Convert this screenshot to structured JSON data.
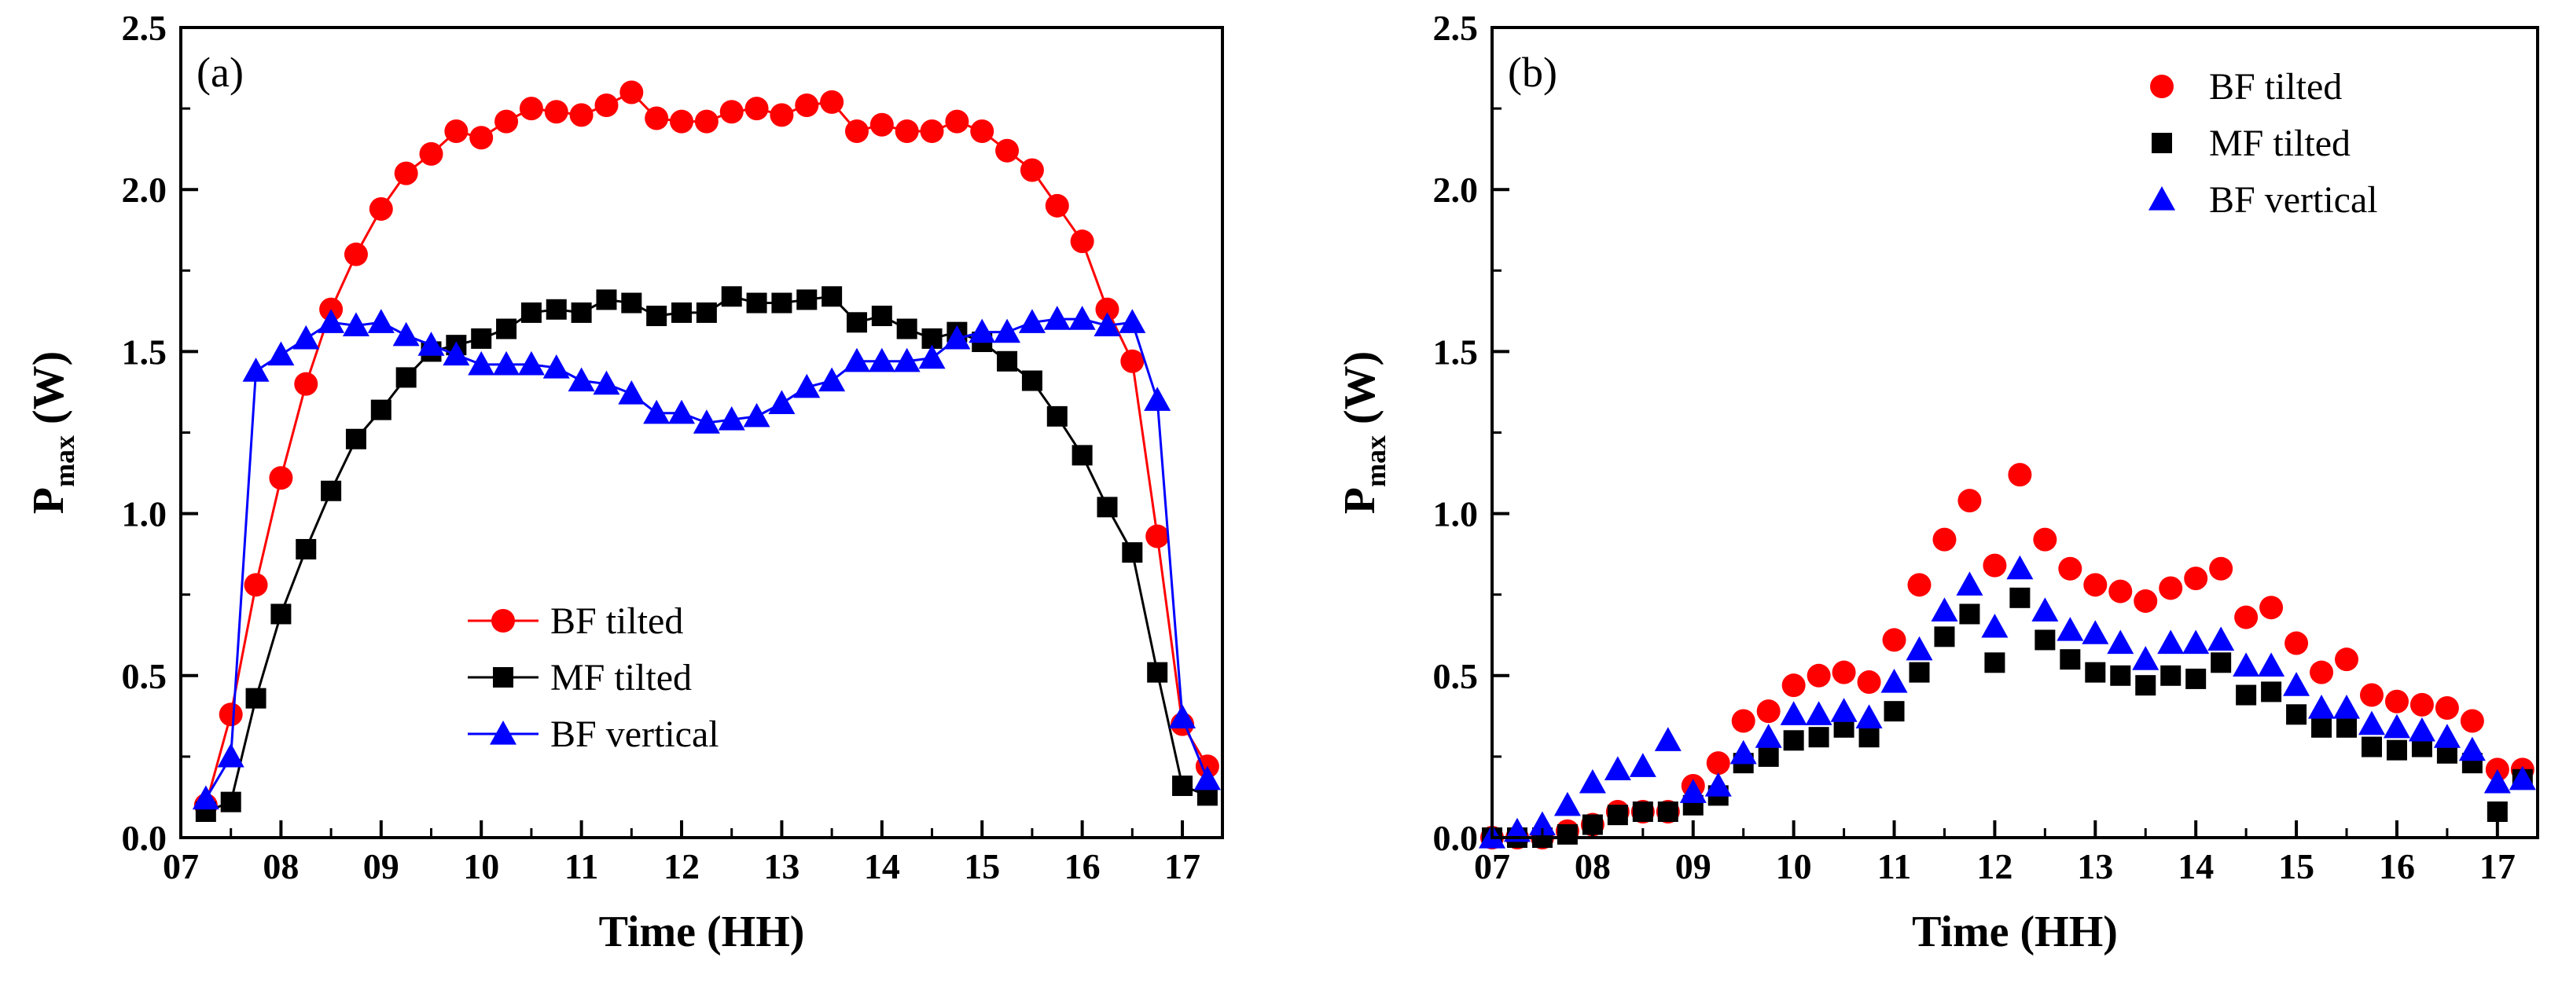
{
  "colors": {
    "bf_tilted": "#ff0000",
    "mf_tilted": "#000000",
    "bf_vertical": "#0000ff",
    "axis": "#000000"
  },
  "chart_data": [
    {
      "id": "a",
      "type": "line",
      "panel_label": "(a)",
      "xlabel": "Time (HH)",
      "ylabel_main": "P",
      "ylabel_sub": "max",
      "ylabel_unit": " (W)",
      "xlim": [
        7,
        17.4
      ],
      "ylim": [
        0,
        2.5
      ],
      "xticks": [
        7,
        8,
        9,
        10,
        11,
        12,
        13,
        14,
        15,
        16,
        17
      ],
      "xtick_labels": [
        "07",
        "08",
        "09",
        "10",
        "11",
        "12",
        "13",
        "14",
        "15",
        "16",
        "17"
      ],
      "yticks": [
        0,
        0.5,
        1.0,
        1.5,
        2.0,
        2.5
      ],
      "ytick_labels": [
        "0.0",
        "0.5",
        "1.0",
        "1.5",
        "2.0",
        "2.5"
      ],
      "legend_position": "center",
      "show_lines": true,
      "series": [
        {
          "name": "BF tilted",
          "key": "bf_tilted",
          "marker": "circle",
          "x": [
            7.25,
            7.5,
            7.75,
            8.0,
            8.25,
            8.5,
            8.75,
            9.0,
            9.25,
            9.5,
            9.75,
            10.0,
            10.25,
            10.5,
            10.75,
            11.0,
            11.25,
            11.5,
            11.75,
            12.0,
            12.25,
            12.5,
            12.75,
            13.0,
            13.25,
            13.5,
            13.75,
            14.0,
            14.25,
            14.5,
            14.75,
            15.0,
            15.25,
            15.5,
            15.75,
            16.0,
            16.25,
            16.5,
            16.75,
            17.0,
            17.25
          ],
          "y": [
            0.1,
            0.38,
            0.78,
            1.11,
            1.4,
            1.63,
            1.8,
            1.94,
            2.05,
            2.11,
            2.18,
            2.16,
            2.21,
            2.25,
            2.24,
            2.23,
            2.26,
            2.3,
            2.22,
            2.21,
            2.21,
            2.24,
            2.25,
            2.23,
            2.26,
            2.27,
            2.18,
            2.2,
            2.18,
            2.18,
            2.21,
            2.18,
            2.12,
            2.06,
            1.95,
            1.84,
            1.63,
            1.47,
            0.93,
            0.35,
            0.22
          ]
        },
        {
          "name": "MF tilted",
          "key": "mf_tilted",
          "marker": "square",
          "x": [
            7.25,
            7.5,
            7.75,
            8.0,
            8.25,
            8.5,
            8.75,
            9.0,
            9.25,
            9.5,
            9.75,
            10.0,
            10.25,
            10.5,
            10.75,
            11.0,
            11.25,
            11.5,
            11.75,
            12.0,
            12.25,
            12.5,
            12.75,
            13.0,
            13.25,
            13.5,
            13.75,
            14.0,
            14.25,
            14.5,
            14.75,
            15.0,
            15.25,
            15.5,
            15.75,
            16.0,
            16.25,
            16.5,
            16.75,
            17.0,
            17.25
          ],
          "y": [
            0.08,
            0.11,
            0.43,
            0.69,
            0.89,
            1.07,
            1.23,
            1.32,
            1.42,
            1.5,
            1.52,
            1.54,
            1.57,
            1.62,
            1.63,
            1.62,
            1.66,
            1.65,
            1.61,
            1.62,
            1.62,
            1.67,
            1.65,
            1.65,
            1.66,
            1.67,
            1.59,
            1.61,
            1.57,
            1.54,
            1.56,
            1.53,
            1.47,
            1.41,
            1.3,
            1.18,
            1.02,
            0.88,
            0.51,
            0.16,
            0.13
          ]
        },
        {
          "name": "BF vertical",
          "key": "bf_vertical",
          "marker": "triangle",
          "x": [
            7.25,
            7.5,
            7.75,
            8.0,
            8.25,
            8.5,
            8.75,
            9.0,
            9.25,
            9.5,
            9.75,
            10.0,
            10.25,
            10.5,
            10.75,
            11.0,
            11.25,
            11.5,
            11.75,
            12.0,
            12.25,
            12.5,
            12.75,
            13.0,
            13.25,
            13.5,
            13.75,
            14.0,
            14.25,
            14.5,
            14.75,
            15.0,
            15.25,
            15.5,
            15.75,
            16.0,
            16.25,
            16.5,
            16.75,
            17.0,
            17.25
          ],
          "y": [
            0.12,
            0.25,
            1.44,
            1.49,
            1.54,
            1.59,
            1.58,
            1.59,
            1.55,
            1.52,
            1.49,
            1.46,
            1.46,
            1.46,
            1.45,
            1.41,
            1.4,
            1.37,
            1.31,
            1.31,
            1.28,
            1.29,
            1.3,
            1.34,
            1.39,
            1.41,
            1.47,
            1.47,
            1.47,
            1.48,
            1.54,
            1.56,
            1.56,
            1.59,
            1.6,
            1.6,
            1.58,
            1.59,
            1.35,
            0.37,
            0.18
          ]
        }
      ]
    },
    {
      "id": "b",
      "type": "scatter",
      "panel_label": "(b)",
      "xlabel": "Time (HH)",
      "ylabel_main": "P",
      "ylabel_sub": "max",
      "ylabel_unit": " (W)",
      "xlim": [
        7,
        17.4
      ],
      "ylim": [
        0,
        2.5
      ],
      "xticks": [
        7,
        8,
        9,
        10,
        11,
        12,
        13,
        14,
        15,
        16,
        17
      ],
      "xtick_labels": [
        "07",
        "08",
        "09",
        "10",
        "11",
        "12",
        "13",
        "14",
        "15",
        "16",
        "17"
      ],
      "yticks": [
        0,
        0.5,
        1.0,
        1.5,
        2.0,
        2.5
      ],
      "ytick_labels": [
        "0.0",
        "0.5",
        "1.0",
        "1.5",
        "2.0",
        "2.5"
      ],
      "legend_position": "top-right",
      "show_lines": false,
      "series": [
        {
          "name": "BF tilted",
          "key": "bf_tilted",
          "marker": "circle",
          "x": [
            7.0,
            7.25,
            7.5,
            7.75,
            8.0,
            8.25,
            8.5,
            8.75,
            9.0,
            9.25,
            9.5,
            9.75,
            10.0,
            10.25,
            10.5,
            10.75,
            11.0,
            11.25,
            11.5,
            11.75,
            12.0,
            12.25,
            12.5,
            12.75,
            13.0,
            13.25,
            13.5,
            13.75,
            14.0,
            14.25,
            14.5,
            14.75,
            15.0,
            15.25,
            15.5,
            15.75,
            16.0,
            16.25,
            16.5,
            16.75,
            17.0,
            17.25
          ],
          "y": [
            0.0,
            0.0,
            0.0,
            0.02,
            0.04,
            0.08,
            0.08,
            0.08,
            0.16,
            0.23,
            0.36,
            0.39,
            0.47,
            0.5,
            0.51,
            0.48,
            0.61,
            0.78,
            0.92,
            1.04,
            0.84,
            1.12,
            0.92,
            0.83,
            0.78,
            0.76,
            0.73,
            0.77,
            0.8,
            0.83,
            0.68,
            0.71,
            0.6,
            0.51,
            0.55,
            0.44,
            0.42,
            0.41,
            0.4,
            0.36,
            0.21,
            0.21
          ]
        },
        {
          "name": "MF tilted",
          "key": "mf_tilted",
          "marker": "square",
          "x": [
            7.0,
            7.25,
            7.5,
            7.75,
            8.0,
            8.25,
            8.5,
            8.75,
            9.0,
            9.25,
            9.5,
            9.75,
            10.0,
            10.25,
            10.5,
            10.75,
            11.0,
            11.25,
            11.5,
            11.75,
            12.0,
            12.25,
            12.5,
            12.75,
            13.0,
            13.25,
            13.5,
            13.75,
            14.0,
            14.25,
            14.5,
            14.75,
            15.0,
            15.25,
            15.5,
            15.75,
            16.0,
            16.25,
            16.5,
            16.75,
            17.0,
            17.25
          ],
          "y": [
            0.0,
            0.0,
            0.0,
            0.01,
            0.04,
            0.07,
            0.08,
            0.08,
            0.1,
            0.13,
            0.23,
            0.25,
            0.3,
            0.31,
            0.34,
            0.31,
            0.39,
            0.51,
            0.62,
            0.69,
            0.54,
            0.74,
            0.61,
            0.55,
            0.51,
            0.5,
            0.47,
            0.5,
            0.49,
            0.54,
            0.44,
            0.45,
            0.38,
            0.34,
            0.34,
            0.28,
            0.27,
            0.28,
            0.26,
            0.23,
            0.08,
            0.18
          ]
        },
        {
          "name": "BF vertical",
          "key": "bf_vertical",
          "marker": "triangle",
          "x": [
            7.0,
            7.25,
            7.5,
            7.75,
            8.0,
            8.25,
            8.5,
            8.75,
            9.0,
            9.25,
            9.5,
            9.75,
            10.0,
            10.25,
            10.5,
            10.75,
            11.0,
            11.25,
            11.5,
            11.75,
            12.0,
            12.25,
            12.5,
            12.75,
            13.0,
            13.25,
            13.5,
            13.75,
            14.0,
            14.25,
            14.5,
            14.75,
            15.0,
            15.25,
            15.5,
            15.75,
            16.0,
            16.25,
            16.5,
            16.75,
            17.0,
            17.25
          ],
          "y": [
            0.0,
            0.02,
            0.04,
            0.1,
            0.17,
            0.21,
            0.22,
            0.3,
            0.14,
            0.16,
            0.26,
            0.31,
            0.38,
            0.38,
            0.39,
            0.37,
            0.48,
            0.58,
            0.7,
            0.78,
            0.65,
            0.83,
            0.7,
            0.64,
            0.63,
            0.6,
            0.55,
            0.6,
            0.6,
            0.61,
            0.53,
            0.53,
            0.47,
            0.4,
            0.4,
            0.35,
            0.34,
            0.33,
            0.31,
            0.27,
            0.17,
            0.18
          ]
        }
      ]
    }
  ]
}
